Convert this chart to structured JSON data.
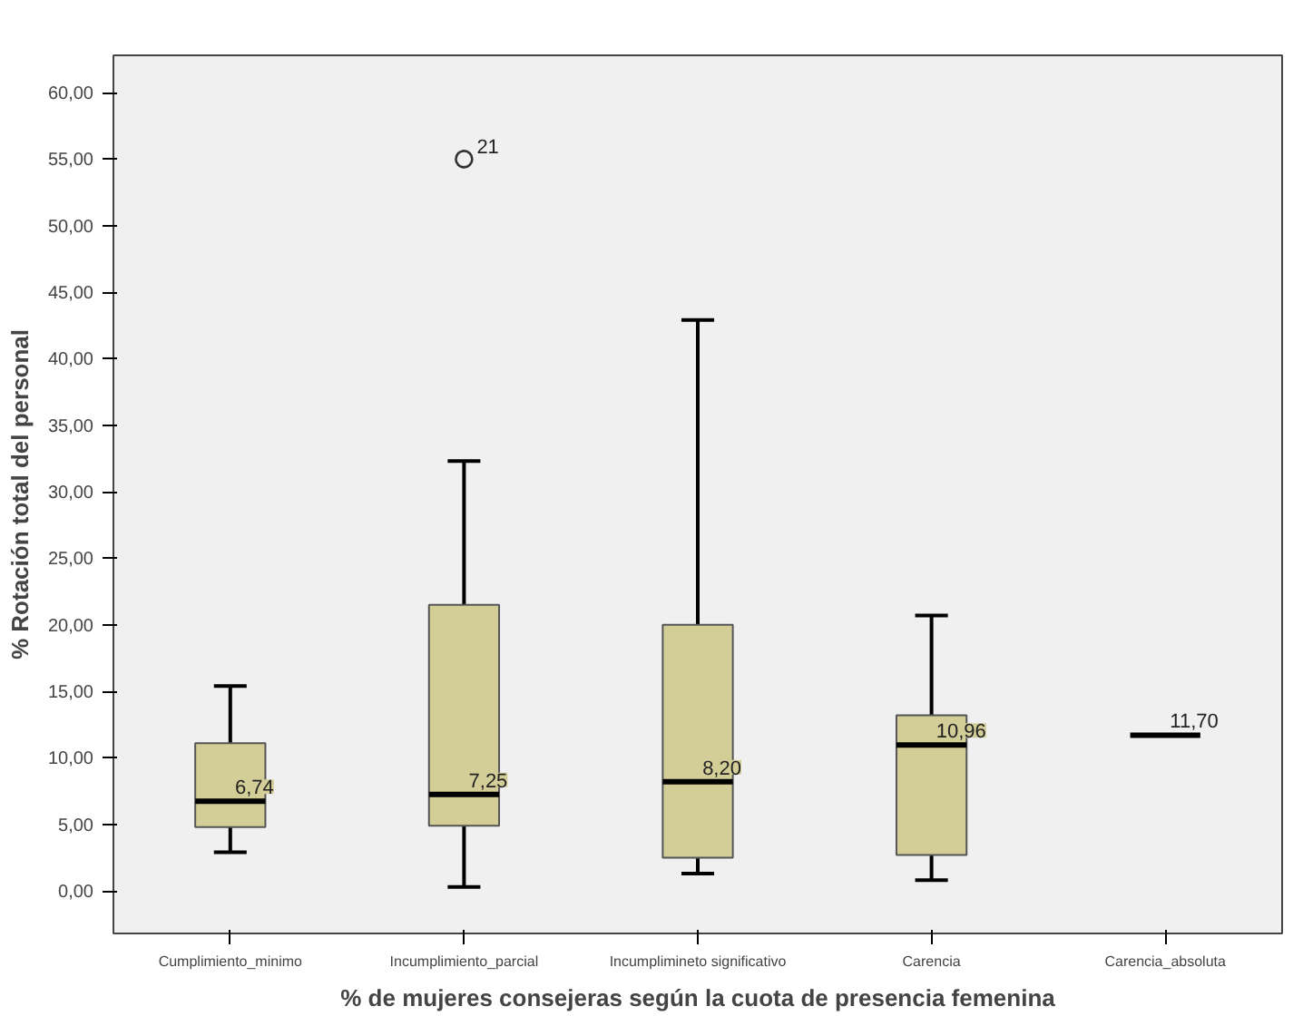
{
  "chart_data": {
    "type": "box",
    "xlabel": "% de mujeres consejeras según la cuota de presencia femenina",
    "ylabel": "% Rotación total del personal",
    "categories": [
      "Cumplimiento_minimo",
      "Incumplimiento_parcial",
      "Incumplimineto significativo",
      "Carencia",
      "Carencia_absoluta"
    ],
    "boxes": [
      {
        "low": 2.9,
        "q1": 4.8,
        "median": 6.74,
        "q3": 11.1,
        "high": 15.4
      },
      {
        "low": 0.3,
        "q1": 4.9,
        "median": 7.25,
        "q3": 21.5,
        "high": 32.3,
        "outliers": [
          55.0
        ]
      },
      {
        "low": 1.3,
        "q1": 2.5,
        "median": 8.2,
        "q3": 20.0,
        "high": 42.9
      },
      {
        "low": 0.8,
        "q1": 2.7,
        "median": 10.96,
        "q3": 13.2,
        "high": 20.7
      },
      {
        "low": 11.7,
        "q1": 11.7,
        "median": 11.7,
        "q3": 11.7,
        "high": 11.7
      }
    ],
    "colors": [
      "#d3ce97",
      "#d3ce97",
      "#d3ce97",
      "#d3ce97",
      "#000000"
    ],
    "ylim": [
      -3.2,
      62.8
    ],
    "yticks": [
      {
        "value": 0,
        "label": "0,00"
      },
      {
        "value": 5,
        "label": "5,00"
      },
      {
        "value": 10,
        "label": "10,00"
      },
      {
        "value": 15,
        "label": "15,00"
      },
      {
        "value": 20,
        "label": "20,00"
      },
      {
        "value": 25,
        "label": "25,00"
      },
      {
        "value": 30,
        "label": "30,00"
      },
      {
        "value": 35,
        "label": "35,00"
      },
      {
        "value": 40,
        "label": "40,00"
      },
      {
        "value": 45,
        "label": "45,00"
      },
      {
        "value": 50,
        "label": "50,00"
      },
      {
        "value": 55,
        "label": "55,00"
      },
      {
        "value": 60,
        "label": "60,00"
      }
    ],
    "annotations": [
      {
        "text": "6,74",
        "x": "Cumplimiento_minimo",
        "y": 6.74
      },
      {
        "text": "7,25",
        "x": "Incumplimiento_parcial",
        "y": 7.25
      },
      {
        "text": "8,20",
        "x": "Incumplimineto significativo",
        "y": 8.2
      },
      {
        "text": "10,96",
        "x": "Carencia",
        "y": 10.96
      },
      {
        "text": "11,70",
        "x": "Carencia_absoluta",
        "y": 11.7
      },
      "21"
    ],
    "grid": false
  }
}
